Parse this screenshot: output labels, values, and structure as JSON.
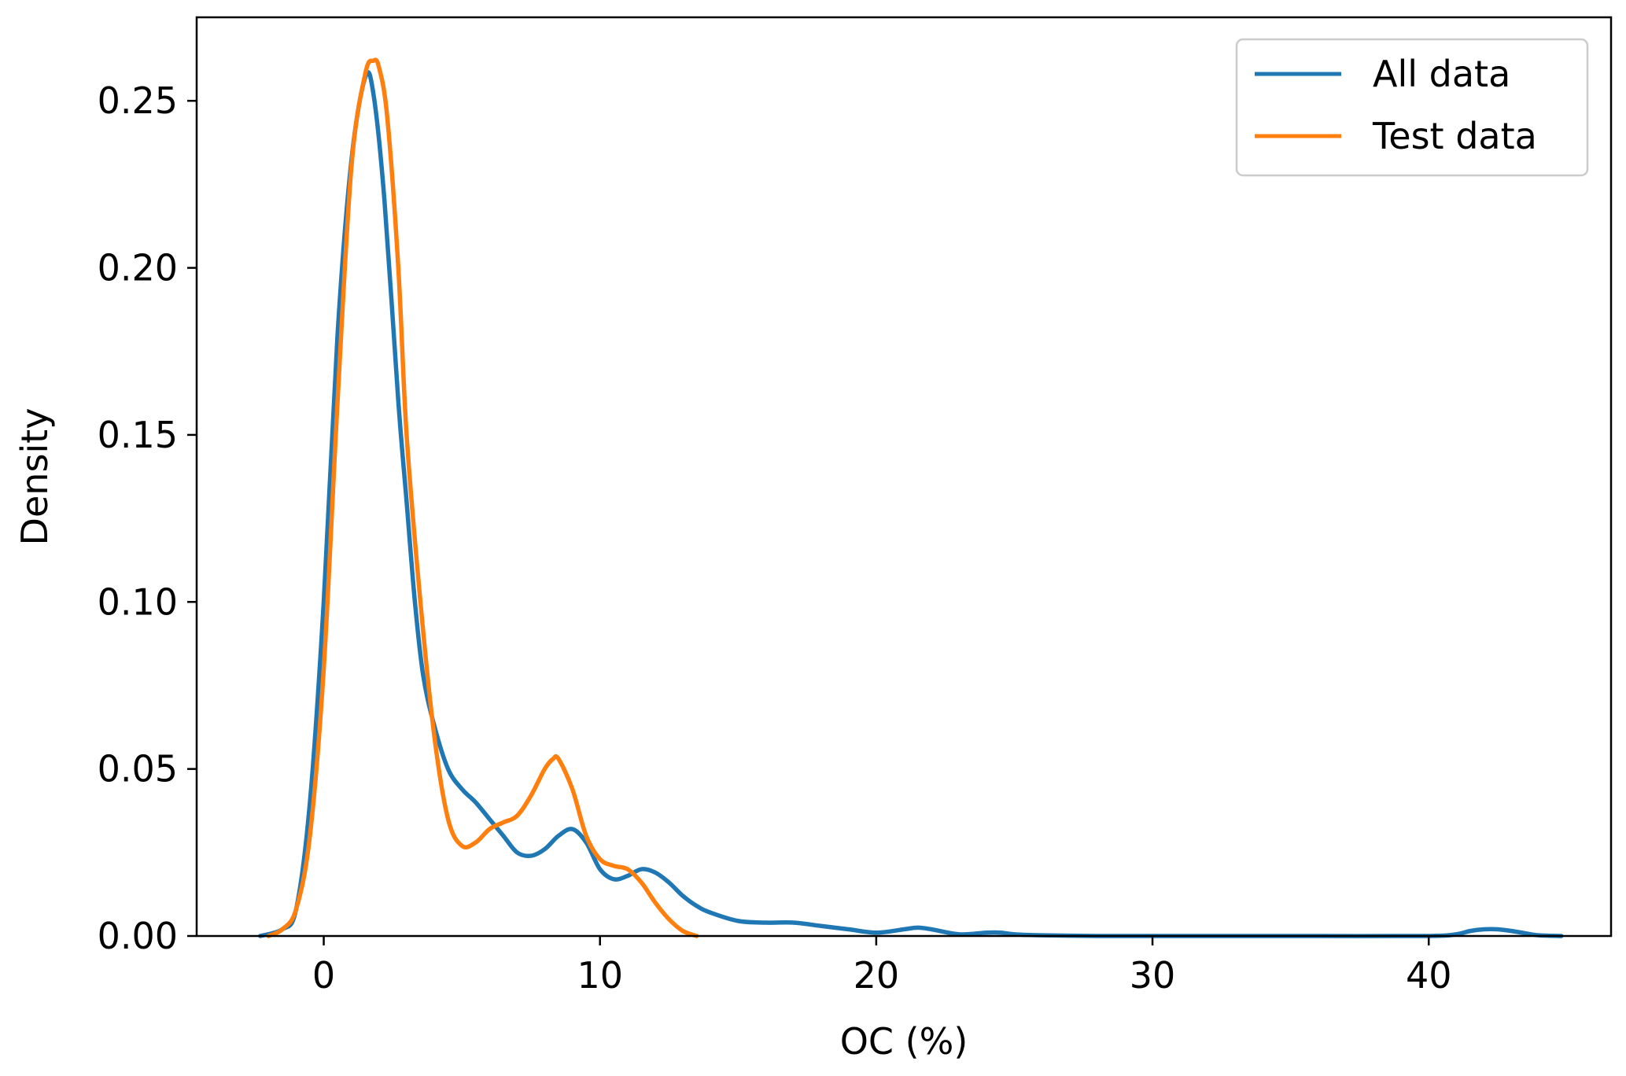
{
  "chart_data": {
    "type": "line",
    "title": "",
    "xlabel": "OC (%)",
    "ylabel": "Density",
    "xlim": [
      -4.6,
      46.6
    ],
    "ylim": [
      0,
      0.275
    ],
    "xticks": [
      0,
      10,
      20,
      30,
      40
    ],
    "xtick_labels": [
      "0",
      "10",
      "20",
      "30",
      "40"
    ],
    "yticks": [
      0,
      0.05,
      0.1,
      0.15,
      0.2,
      0.25
    ],
    "ytick_labels": [
      "0.00",
      "0.05",
      "0.10",
      "0.15",
      "0.20",
      "0.25"
    ],
    "grid": false,
    "legend_position": "top-right",
    "series": [
      {
        "name": "All data",
        "color": "#1f77b4",
        "x": [
          -2.3,
          -1.5,
          -1.0,
          -0.5,
          0.0,
          0.5,
          1.0,
          1.5,
          1.8,
          2.2,
          2.7,
          3.0,
          3.3,
          3.6,
          4.0,
          4.5,
          5.0,
          5.5,
          6.0,
          6.5,
          7.0,
          7.5,
          8.0,
          8.5,
          9.0,
          9.5,
          10.0,
          10.5,
          11.0,
          11.5,
          12.0,
          12.5,
          13.0,
          13.5,
          14.0,
          15.0,
          16.0,
          17.0,
          18.0,
          19.0,
          20.0,
          21.0,
          21.5,
          22.0,
          23.0,
          24.0,
          24.5,
          25.0,
          26.0,
          28.0,
          32.0,
          36.0,
          40.0,
          41.0,
          41.5,
          42.0,
          42.5,
          43.0,
          43.5,
          44.0,
          44.8
        ],
        "y": [
          0.0,
          0.002,
          0.008,
          0.04,
          0.1,
          0.18,
          0.232,
          0.257,
          0.252,
          0.22,
          0.16,
          0.13,
          0.1,
          0.078,
          0.063,
          0.05,
          0.044,
          0.04,
          0.035,
          0.03,
          0.025,
          0.024,
          0.026,
          0.03,
          0.032,
          0.028,
          0.02,
          0.017,
          0.018,
          0.02,
          0.019,
          0.016,
          0.012,
          0.009,
          0.007,
          0.0045,
          0.004,
          0.004,
          0.003,
          0.002,
          0.001,
          0.002,
          0.0025,
          0.002,
          0.0005,
          0.001,
          0.001,
          0.0005,
          0.0002,
          0.0,
          0.0,
          0.0,
          0.0,
          0.0005,
          0.0015,
          0.002,
          0.002,
          0.0015,
          0.0008,
          0.0002,
          0.0
        ]
      },
      {
        "name": "Test data",
        "color": "#ff7f0e",
        "x": [
          -2.0,
          -1.5,
          -1.0,
          -0.5,
          0.0,
          0.5,
          1.0,
          1.5,
          1.8,
          2.0,
          2.3,
          2.7,
          3.0,
          3.5,
          4.0,
          4.5,
          5.0,
          5.5,
          6.0,
          6.5,
          7.0,
          7.5,
          8.0,
          8.3,
          8.5,
          9.0,
          9.5,
          10.0,
          10.5,
          11.0,
          11.5,
          12.0,
          12.5,
          13.0,
          13.5
        ],
        "y": [
          0.0,
          0.002,
          0.008,
          0.03,
          0.08,
          0.16,
          0.23,
          0.258,
          0.262,
          0.26,
          0.245,
          0.2,
          0.15,
          0.1,
          0.06,
          0.035,
          0.027,
          0.028,
          0.032,
          0.034,
          0.036,
          0.042,
          0.05,
          0.053,
          0.053,
          0.044,
          0.03,
          0.023,
          0.021,
          0.02,
          0.016,
          0.01,
          0.005,
          0.0015,
          0.0
        ]
      }
    ]
  }
}
